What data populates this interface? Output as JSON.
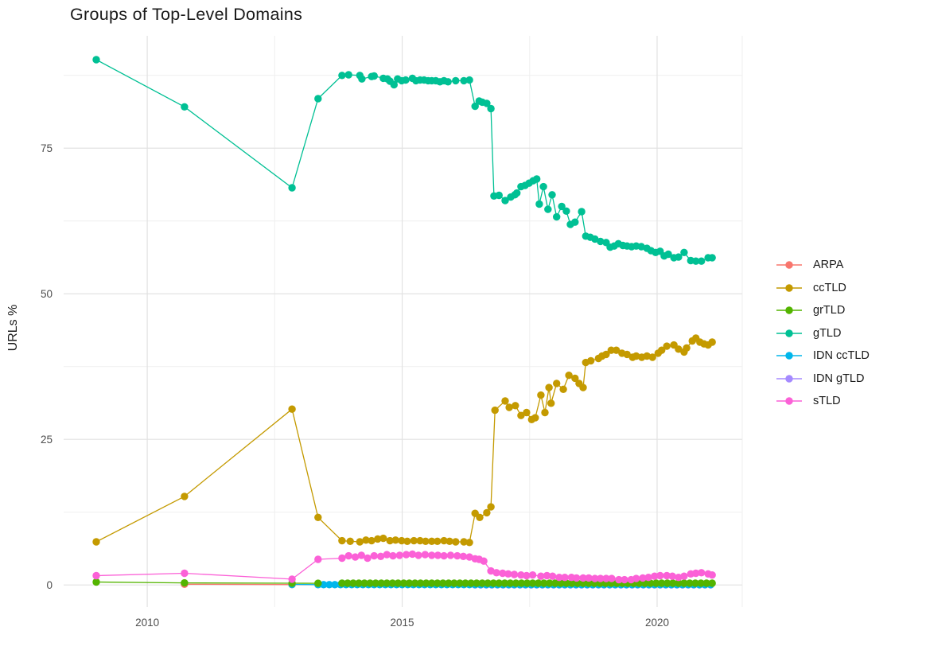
{
  "chart_data": {
    "type": "line",
    "title": "Groups of Top-Level Domains",
    "xlabel": "",
    "ylabel": "URLs %",
    "legend_position": "right",
    "grid": "major+minor",
    "x_domain": [
      2008.36,
      2021.67
    ],
    "y_domain": [
      -3.8,
      94.3
    ],
    "x_major_ticks": [
      {
        "value": 2010,
        "label": "2010"
      },
      {
        "value": 2015,
        "label": "2015"
      },
      {
        "value": 2020,
        "label": "2020"
      }
    ],
    "x_minor_ticks": [
      2012.5,
      2017.5,
      2021.67
    ],
    "y_major_ticks": [
      {
        "value": 0,
        "label": "0"
      },
      {
        "value": 25,
        "label": "25"
      },
      {
        "value": 50,
        "label": "50"
      },
      {
        "value": 75,
        "label": "75"
      }
    ],
    "y_minor_ticks": [
      12.5,
      37.5,
      62.5,
      87.5
    ],
    "series": [
      {
        "name": "ARPA",
        "color": "#F8766D",
        "points": [
          [
            2010.73,
            0.12
          ],
          [
            2012.84,
            0.07
          ],
          [
            2013.35,
            0.05
          ]
        ]
      },
      {
        "name": "ccTLD",
        "color": "#C49A00",
        "points": [
          [
            2009.0,
            7.4
          ],
          [
            2010.73,
            15.2
          ],
          [
            2012.84,
            30.2
          ],
          [
            2013.35,
            11.6
          ],
          [
            2013.82,
            7.6
          ],
          [
            2013.98,
            7.5
          ],
          [
            2014.17,
            7.4
          ],
          [
            2014.29,
            7.7
          ],
          [
            2014.4,
            7.6
          ],
          [
            2014.52,
            7.9
          ],
          [
            2014.63,
            8.0
          ],
          [
            2014.76,
            7.6
          ],
          [
            2014.87,
            7.7
          ],
          [
            2014.99,
            7.6
          ],
          [
            2015.1,
            7.5
          ],
          [
            2015.23,
            7.6
          ],
          [
            2015.35,
            7.6
          ],
          [
            2015.46,
            7.5
          ],
          [
            2015.58,
            7.5
          ],
          [
            2015.69,
            7.5
          ],
          [
            2015.82,
            7.6
          ],
          [
            2015.93,
            7.5
          ],
          [
            2016.05,
            7.4
          ],
          [
            2016.21,
            7.4
          ],
          [
            2016.32,
            7.3
          ],
          [
            2016.43,
            12.3
          ],
          [
            2016.52,
            11.6
          ],
          [
            2016.66,
            12.4
          ],
          [
            2016.74,
            13.4
          ],
          [
            2016.82,
            30.0
          ],
          [
            2017.02,
            31.6
          ],
          [
            2017.1,
            30.5
          ],
          [
            2017.22,
            30.8
          ],
          [
            2017.33,
            29.1
          ],
          [
            2017.44,
            29.6
          ],
          [
            2017.54,
            28.4
          ],
          [
            2017.61,
            28.7
          ],
          [
            2017.72,
            32.6
          ],
          [
            2017.8,
            29.6
          ],
          [
            2017.88,
            33.9
          ],
          [
            2017.92,
            31.2
          ],
          [
            2018.03,
            34.6
          ],
          [
            2018.16,
            33.6
          ],
          [
            2018.27,
            36.0
          ],
          [
            2018.39,
            35.5
          ],
          [
            2018.47,
            34.6
          ],
          [
            2018.55,
            33.9
          ],
          [
            2018.6,
            38.2
          ],
          [
            2018.7,
            38.5
          ],
          [
            2018.85,
            38.9
          ],
          [
            2018.92,
            39.3
          ],
          [
            2019.0,
            39.6
          ],
          [
            2019.1,
            40.3
          ],
          [
            2019.2,
            40.3
          ],
          [
            2019.31,
            39.8
          ],
          [
            2019.41,
            39.6
          ],
          [
            2019.52,
            39.1
          ],
          [
            2019.59,
            39.3
          ],
          [
            2019.7,
            39.1
          ],
          [
            2019.8,
            39.3
          ],
          [
            2019.91,
            39.1
          ],
          [
            2020.02,
            39.8
          ],
          [
            2020.09,
            40.3
          ],
          [
            2020.19,
            41.0
          ],
          [
            2020.33,
            41.2
          ],
          [
            2020.42,
            40.5
          ],
          [
            2020.53,
            40.0
          ],
          [
            2020.58,
            40.7
          ],
          [
            2020.69,
            41.9
          ],
          [
            2020.76,
            42.4
          ],
          [
            2020.84,
            41.7
          ],
          [
            2020.92,
            41.4
          ],
          [
            2021.0,
            41.2
          ],
          [
            2021.08,
            41.7
          ]
        ]
      },
      {
        "name": "grTLD",
        "color": "#53B400",
        "points": [
          [
            2009.0,
            0.5
          ],
          [
            2010.73,
            0.35
          ],
          [
            2012.84,
            0.3
          ],
          [
            2013.35,
            0.28
          ]
        ],
        "runs": [
          {
            "from": 2013.82,
            "to": 2021.08,
            "step": 0.11,
            "value": 0.3
          }
        ]
      },
      {
        "name": "gTLD",
        "color": "#00C094",
        "points": [
          [
            2009.0,
            90.2
          ],
          [
            2010.73,
            82.1
          ],
          [
            2012.84,
            68.2
          ],
          [
            2013.35,
            83.5
          ],
          [
            2013.82,
            87.5
          ],
          [
            2013.95,
            87.6
          ],
          [
            2014.17,
            87.5
          ],
          [
            2014.21,
            86.9
          ],
          [
            2014.4,
            87.3
          ],
          [
            2014.45,
            87.4
          ],
          [
            2014.63,
            87.0
          ],
          [
            2014.71,
            86.9
          ],
          [
            2014.76,
            86.5
          ],
          [
            2014.84,
            85.9
          ],
          [
            2014.91,
            86.9
          ],
          [
            2014.99,
            86.6
          ],
          [
            2015.07,
            86.7
          ],
          [
            2015.2,
            87.0
          ],
          [
            2015.27,
            86.6
          ],
          [
            2015.35,
            86.7
          ],
          [
            2015.43,
            86.7
          ],
          [
            2015.51,
            86.6
          ],
          [
            2015.58,
            86.6
          ],
          [
            2015.66,
            86.6
          ],
          [
            2015.74,
            86.4
          ],
          [
            2015.82,
            86.6
          ],
          [
            2015.9,
            86.4
          ],
          [
            2016.05,
            86.6
          ],
          [
            2016.21,
            86.6
          ],
          [
            2016.32,
            86.7
          ],
          [
            2016.43,
            82.2
          ],
          [
            2016.51,
            83.1
          ],
          [
            2016.57,
            82.9
          ],
          [
            2016.66,
            82.7
          ],
          [
            2016.74,
            81.8
          ],
          [
            2016.8,
            66.8
          ],
          [
            2016.9,
            66.9
          ],
          [
            2017.02,
            66.0
          ],
          [
            2017.13,
            66.6
          ],
          [
            2017.21,
            67.0
          ],
          [
            2017.25,
            67.3
          ],
          [
            2017.33,
            68.4
          ],
          [
            2017.41,
            68.6
          ],
          [
            2017.49,
            69.0
          ],
          [
            2017.57,
            69.4
          ],
          [
            2017.64,
            69.7
          ],
          [
            2017.69,
            65.4
          ],
          [
            2017.77,
            68.4
          ],
          [
            2017.86,
            64.5
          ],
          [
            2017.94,
            67.0
          ],
          [
            2018.03,
            63.2
          ],
          [
            2018.13,
            65.0
          ],
          [
            2018.22,
            64.2
          ],
          [
            2018.3,
            61.9
          ],
          [
            2018.39,
            62.3
          ],
          [
            2018.52,
            64.1
          ],
          [
            2018.6,
            59.9
          ],
          [
            2018.69,
            59.7
          ],
          [
            2018.78,
            59.4
          ],
          [
            2018.89,
            59.0
          ],
          [
            2019.0,
            58.8
          ],
          [
            2019.08,
            58.0
          ],
          [
            2019.16,
            58.2
          ],
          [
            2019.24,
            58.6
          ],
          [
            2019.33,
            58.3
          ],
          [
            2019.41,
            58.2
          ],
          [
            2019.5,
            58.1
          ],
          [
            2019.59,
            58.2
          ],
          [
            2019.69,
            58.1
          ],
          [
            2019.8,
            57.8
          ],
          [
            2019.88,
            57.4
          ],
          [
            2019.97,
            57.1
          ],
          [
            2020.06,
            57.3
          ],
          [
            2020.14,
            56.5
          ],
          [
            2020.22,
            56.8
          ],
          [
            2020.33,
            56.2
          ],
          [
            2020.42,
            56.3
          ],
          [
            2020.53,
            57.1
          ],
          [
            2020.66,
            55.7
          ],
          [
            2020.76,
            55.6
          ],
          [
            2020.87,
            55.6
          ],
          [
            2021.0,
            56.2
          ],
          [
            2021.08,
            56.2
          ]
        ]
      },
      {
        "name": "IDN ccTLD",
        "color": "#00B6EB",
        "points": [
          [
            2012.84,
            0.1
          ]
        ],
        "runs": [
          {
            "from": 2013.35,
            "to": 2021.08,
            "step": 0.11,
            "value": 0.05
          }
        ]
      },
      {
        "name": "IDN gTLD",
        "color": "#A58AFF",
        "points": [],
        "runs": [
          {
            "from": 2016.43,
            "to": 2021.08,
            "step": 0.11,
            "value": 0.02
          }
        ]
      },
      {
        "name": "sTLD",
        "color": "#FB61D7",
        "points": [
          [
            2009.0,
            1.6
          ],
          [
            2010.73,
            2.0
          ],
          [
            2012.84,
            1.0
          ],
          [
            2013.35,
            4.4
          ],
          [
            2013.82,
            4.6
          ],
          [
            2013.95,
            5.0
          ],
          [
            2014.08,
            4.8
          ],
          [
            2014.2,
            5.1
          ],
          [
            2014.32,
            4.6
          ],
          [
            2014.45,
            5.0
          ],
          [
            2014.58,
            4.9
          ],
          [
            2014.7,
            5.2
          ],
          [
            2014.82,
            5.0
          ],
          [
            2014.95,
            5.1
          ],
          [
            2015.08,
            5.2
          ],
          [
            2015.2,
            5.3
          ],
          [
            2015.32,
            5.1
          ],
          [
            2015.45,
            5.2
          ],
          [
            2015.58,
            5.1
          ],
          [
            2015.7,
            5.1
          ],
          [
            2015.82,
            5.0
          ],
          [
            2015.95,
            5.1
          ],
          [
            2016.08,
            5.0
          ],
          [
            2016.2,
            4.9
          ],
          [
            2016.32,
            4.8
          ],
          [
            2016.43,
            4.5
          ],
          [
            2016.51,
            4.4
          ],
          [
            2016.6,
            4.1
          ],
          [
            2016.74,
            2.4
          ],
          [
            2016.85,
            2.1
          ],
          [
            2016.97,
            2.0
          ],
          [
            2017.08,
            1.9
          ],
          [
            2017.2,
            1.8
          ],
          [
            2017.33,
            1.7
          ],
          [
            2017.44,
            1.6
          ],
          [
            2017.56,
            1.7
          ],
          [
            2017.72,
            1.5
          ],
          [
            2017.84,
            1.6
          ],
          [
            2017.95,
            1.5
          ],
          [
            2018.08,
            1.3
          ],
          [
            2018.19,
            1.3
          ],
          [
            2018.32,
            1.3
          ],
          [
            2018.42,
            1.2
          ],
          [
            2018.55,
            1.2
          ],
          [
            2018.66,
            1.2
          ],
          [
            2018.78,
            1.1
          ],
          [
            2018.89,
            1.1
          ],
          [
            2019.0,
            1.1
          ],
          [
            2019.11,
            1.1
          ],
          [
            2019.25,
            0.9
          ],
          [
            2019.36,
            0.9
          ],
          [
            2019.49,
            0.9
          ],
          [
            2019.59,
            1.1
          ],
          [
            2019.72,
            1.2
          ],
          [
            2019.83,
            1.3
          ],
          [
            2019.95,
            1.5
          ],
          [
            2020.06,
            1.6
          ],
          [
            2020.19,
            1.6
          ],
          [
            2020.3,
            1.5
          ],
          [
            2020.42,
            1.3
          ],
          [
            2020.53,
            1.5
          ],
          [
            2020.66,
            1.9
          ],
          [
            2020.76,
            2.0
          ],
          [
            2020.87,
            2.1
          ],
          [
            2021.0,
            1.9
          ],
          [
            2021.08,
            1.7
          ]
        ]
      }
    ]
  },
  "colors": {
    "background": "#FFFFFF",
    "grid_major": "#E2E2E2",
    "grid_minor": "#EFEFEF",
    "tick_text": "#4D4D4D",
    "title_text": "#1A1A1A",
    "legend_text": "#1A1A1A"
  }
}
